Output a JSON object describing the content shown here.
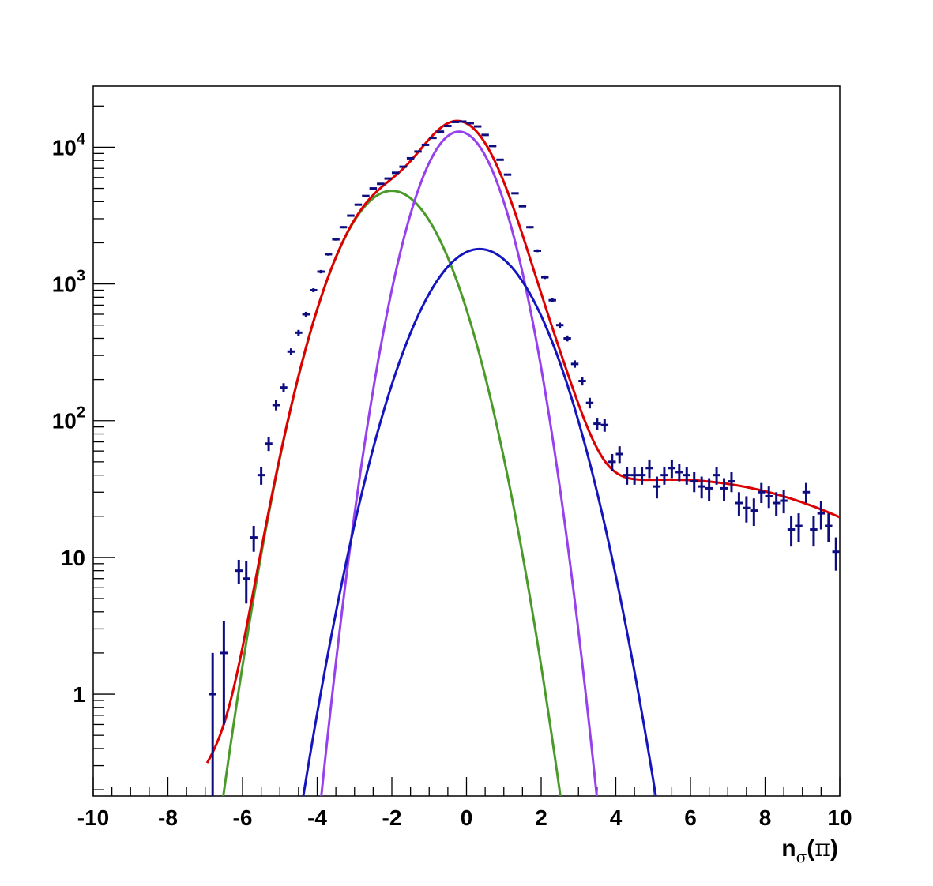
{
  "chart_data": {
    "type": "scatter",
    "title": "",
    "xlabel": {
      "main": "n",
      "sub": "σ",
      "open": "(",
      "symbol": "π",
      "close": ")"
    },
    "ylabel": "",
    "xlim": [
      -10,
      10
    ],
    "ylim": [
      0.18,
      28000
    ],
    "yscale": "log",
    "grid": false,
    "x_ticks": [
      -10,
      -8,
      -6,
      -4,
      -2,
      0,
      2,
      4,
      6,
      8,
      10
    ],
    "x_tick_labels": [
      "-10",
      "-8",
      "-6",
      "-4",
      "-2",
      "0",
      "2",
      "4",
      "6",
      "8",
      "10"
    ],
    "y_ticks": [
      1,
      10,
      100,
      1000,
      10000
    ],
    "y_tick_labels": [
      {
        "base": "1",
        "exp": ""
      },
      {
        "base": "10",
        "exp": ""
      },
      {
        "base": "10",
        "exp": "2"
      },
      {
        "base": "10",
        "exp": "3"
      },
      {
        "base": "10",
        "exp": "4"
      }
    ],
    "series": [
      {
        "kind": "points",
        "color": "#0d0d80",
        "x": [
          -6.8,
          -6.5,
          -6.1,
          -5.9,
          -5.7,
          -5.5,
          -5.3,
          -5.1,
          -4.9,
          -4.7,
          -4.5,
          -4.3,
          -4.1,
          -3.9,
          -3.7,
          -3.5,
          -3.3,
          -3.1,
          -2.9,
          -2.7,
          -2.5,
          -2.3,
          -2.1,
          -1.9,
          -1.7,
          -1.5,
          -1.3,
          -1.1,
          -0.9,
          -0.7,
          -0.5,
          -0.3,
          -0.1,
          0.1,
          0.3,
          0.5,
          0.7,
          0.9,
          1.1,
          1.3,
          1.5,
          1.7,
          1.9,
          2.1,
          2.3,
          2.5,
          2.7,
          2.9,
          3.1,
          3.3,
          3.5,
          3.7,
          3.9,
          4.1,
          4.3,
          4.5,
          4.7,
          4.9,
          5.1,
          5.3,
          5.5,
          5.7,
          5.9,
          6.1,
          6.3,
          6.5,
          6.7,
          6.9,
          7.1,
          7.3,
          7.5,
          7.7,
          7.9,
          8.1,
          8.3,
          8.5,
          8.7,
          8.9,
          9.1,
          9.3,
          9.5,
          9.7,
          9.9
        ],
        "y": [
          1,
          2,
          8,
          7,
          14,
          40,
          68,
          130,
          175,
          320,
          440,
          600,
          900,
          1230,
          1650,
          2120,
          2600,
          3160,
          3800,
          4400,
          5000,
          5400,
          5900,
          6500,
          7200,
          8300,
          9300,
          10400,
          11700,
          13000,
          14300,
          15300,
          15400,
          15000,
          14200,
          12300,
          10200,
          8100,
          6300,
          4600,
          3700,
          2600,
          1750,
          1120,
          760,
          500,
          400,
          260,
          195,
          135,
          95,
          93,
          50,
          57,
          40,
          40,
          40,
          45,
          33,
          40,
          45,
          42,
          40,
          36,
          33,
          32,
          40,
          32,
          36,
          25,
          23,
          22,
          30,
          28,
          25,
          26,
          16,
          17,
          30,
          16,
          21,
          17,
          11
        ],
        "yerr_lo": [
          1,
          1.4,
          1.6,
          2.4,
          3,
          6,
          8,
          11,
          13,
          18,
          21,
          25,
          30,
          35,
          41,
          46,
          51,
          56,
          62,
          66,
          71,
          73,
          77,
          81,
          85,
          91,
          96,
          102,
          108,
          114,
          120,
          124,
          124,
          122,
          119,
          111,
          101,
          90,
          79,
          68,
          61,
          51,
          42,
          33,
          28,
          22,
          20,
          16,
          14,
          12,
          10,
          10,
          7,
          8,
          6,
          6,
          6,
          7,
          6,
          6,
          7,
          6,
          6,
          6,
          6,
          6,
          6,
          6,
          6,
          5,
          5,
          5,
          5,
          5,
          5,
          5,
          4,
          4,
          5,
          4,
          5,
          4,
          3
        ],
        "yerr_hi": [
          1,
          1.4,
          1.6,
          2.4,
          3,
          6,
          8,
          11,
          13,
          18,
          21,
          25,
          30,
          35,
          41,
          46,
          51,
          56,
          62,
          66,
          71,
          73,
          77,
          81,
          85,
          91,
          96,
          102,
          108,
          114,
          120,
          124,
          124,
          122,
          119,
          111,
          101,
          90,
          79,
          68,
          61,
          51,
          42,
          33,
          28,
          22,
          20,
          16,
          14,
          12,
          10,
          10,
          7,
          8,
          6,
          6,
          6,
          7,
          6,
          6,
          7,
          6,
          6,
          6,
          6,
          6,
          6,
          6,
          6,
          5,
          5,
          5,
          5,
          5,
          5,
          5,
          4,
          4,
          5,
          4,
          5,
          4,
          3
        ],
        "x_half_width": 0.1
      },
      {
        "kind": "curve",
        "color": "#4a9a2a",
        "shape": "gaussian",
        "amplitude": 4800,
        "mean": -2.0,
        "sigma": 1.0,
        "xrange": [
          -7.2,
          2.7
        ]
      },
      {
        "kind": "curve",
        "color": "#9640ee",
        "shape": "gaussian",
        "amplitude": 13000,
        "mean": -0.2,
        "sigma": 0.78,
        "xrange": [
          -4.5,
          4.5
        ]
      },
      {
        "kind": "curve",
        "color": "#1515c0",
        "shape": "gaussian",
        "amplitude": 1800,
        "mean": 0.35,
        "sigma": 1.1,
        "xrange": [
          -5.5,
          6.2
        ]
      },
      {
        "kind": "curve",
        "color": "#dd0000",
        "shape": "sum",
        "components": [
          1,
          2,
          3
        ],
        "extra_tail": {
          "amplitude": 37,
          "mean": 5.5,
          "sigma": 4.0
        },
        "xrange": [
          -6.95,
          10.0
        ]
      }
    ]
  }
}
